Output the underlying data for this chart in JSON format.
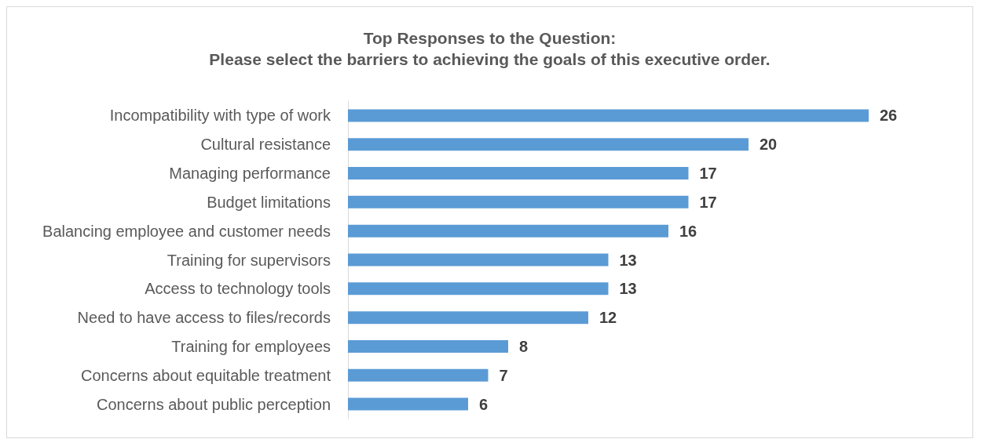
{
  "chart_data": {
    "type": "bar",
    "orientation": "horizontal",
    "title": "Top Responses to the Question:",
    "subtitle": "Please select the barriers to achieving the goals of this executive order.",
    "categories": [
      "Incompatibility with type of work",
      "Cultural resistance",
      "Managing performance",
      "Budget limitations",
      "Balancing employee and customer needs",
      "Training for supervisors",
      "Access to technology tools",
      "Need to have access to files/records",
      "Training for employees",
      "Concerns about equitable treatment",
      "Concerns about public perception"
    ],
    "values": [
      26,
      20,
      17,
      17,
      16,
      13,
      13,
      12,
      8,
      7,
      6
    ],
    "color": "#5b9bd5",
    "data_labels": true
  }
}
